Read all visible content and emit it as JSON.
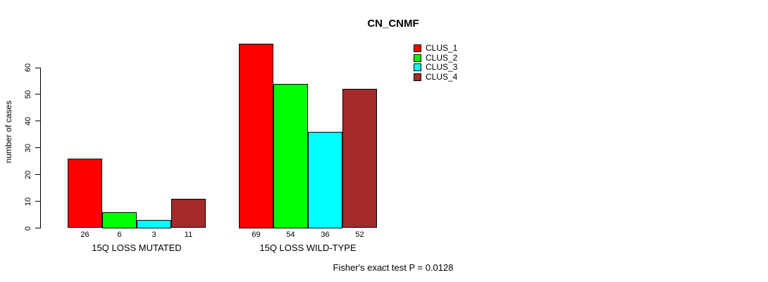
{
  "chart_data": {
    "type": "bar",
    "title": "CN_CNMF",
    "ylabel": "number of cases",
    "xlabel": "",
    "footnote": "Fisher's exact test P = 0.0128",
    "ylim": [
      0,
      60
    ],
    "yticks": [
      0,
      10,
      20,
      30,
      40,
      50,
      60
    ],
    "grid": false,
    "legend_position": "top-right",
    "bar_value_labels_shown": true,
    "categories": [
      "15Q LOSS MUTATED",
      "15Q LOSS WILD-TYPE"
    ],
    "series": [
      {
        "name": "CLUS_1",
        "color": "#ff0000",
        "values": [
          26,
          69
        ]
      },
      {
        "name": "CLUS_2",
        "color": "#00ff00",
        "values": [
          6,
          54
        ]
      },
      {
        "name": "CLUS_3",
        "color": "#00ffff",
        "values": [
          3,
          36
        ]
      },
      {
        "name": "CLUS_4",
        "color": "#a52a2a",
        "values": [
          11,
          52
        ]
      }
    ]
  }
}
